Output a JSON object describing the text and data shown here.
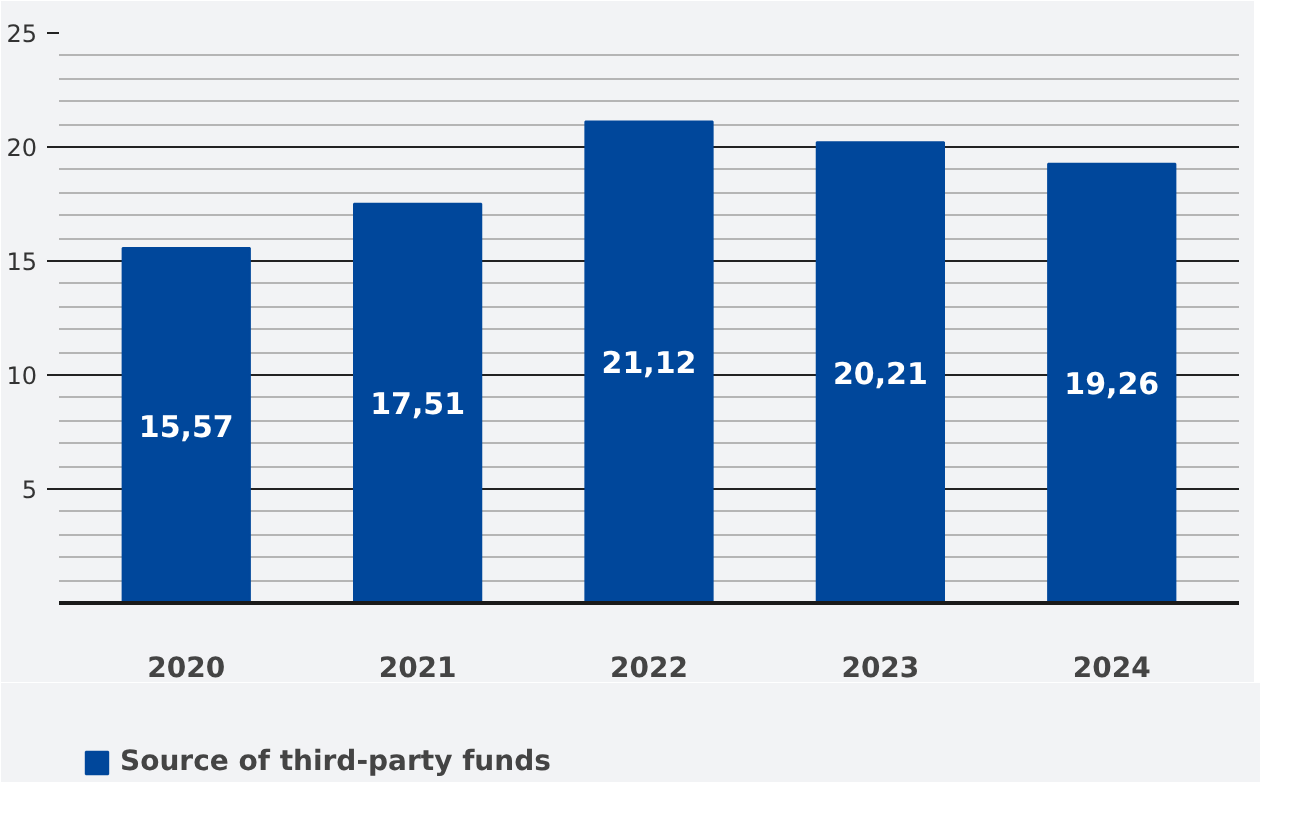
{
  "chart_data": {
    "type": "bar",
    "categories": [
      "2020",
      "2021",
      "2022",
      "2023",
      "2024"
    ],
    "series": [
      {
        "name": "Source of third-party funds",
        "color": "#00479b",
        "values": [
          15.57,
          17.51,
          21.12,
          20.21,
          19.26
        ]
      }
    ],
    "value_labels": [
      "15,57",
      "17,51",
      "21,12",
      "20,21",
      "19,26"
    ],
    "ylim": [
      0,
      25
    ],
    "yticks": [
      5,
      10,
      15,
      20,
      25
    ],
    "grid": true,
    "legend": "bottom left"
  }
}
